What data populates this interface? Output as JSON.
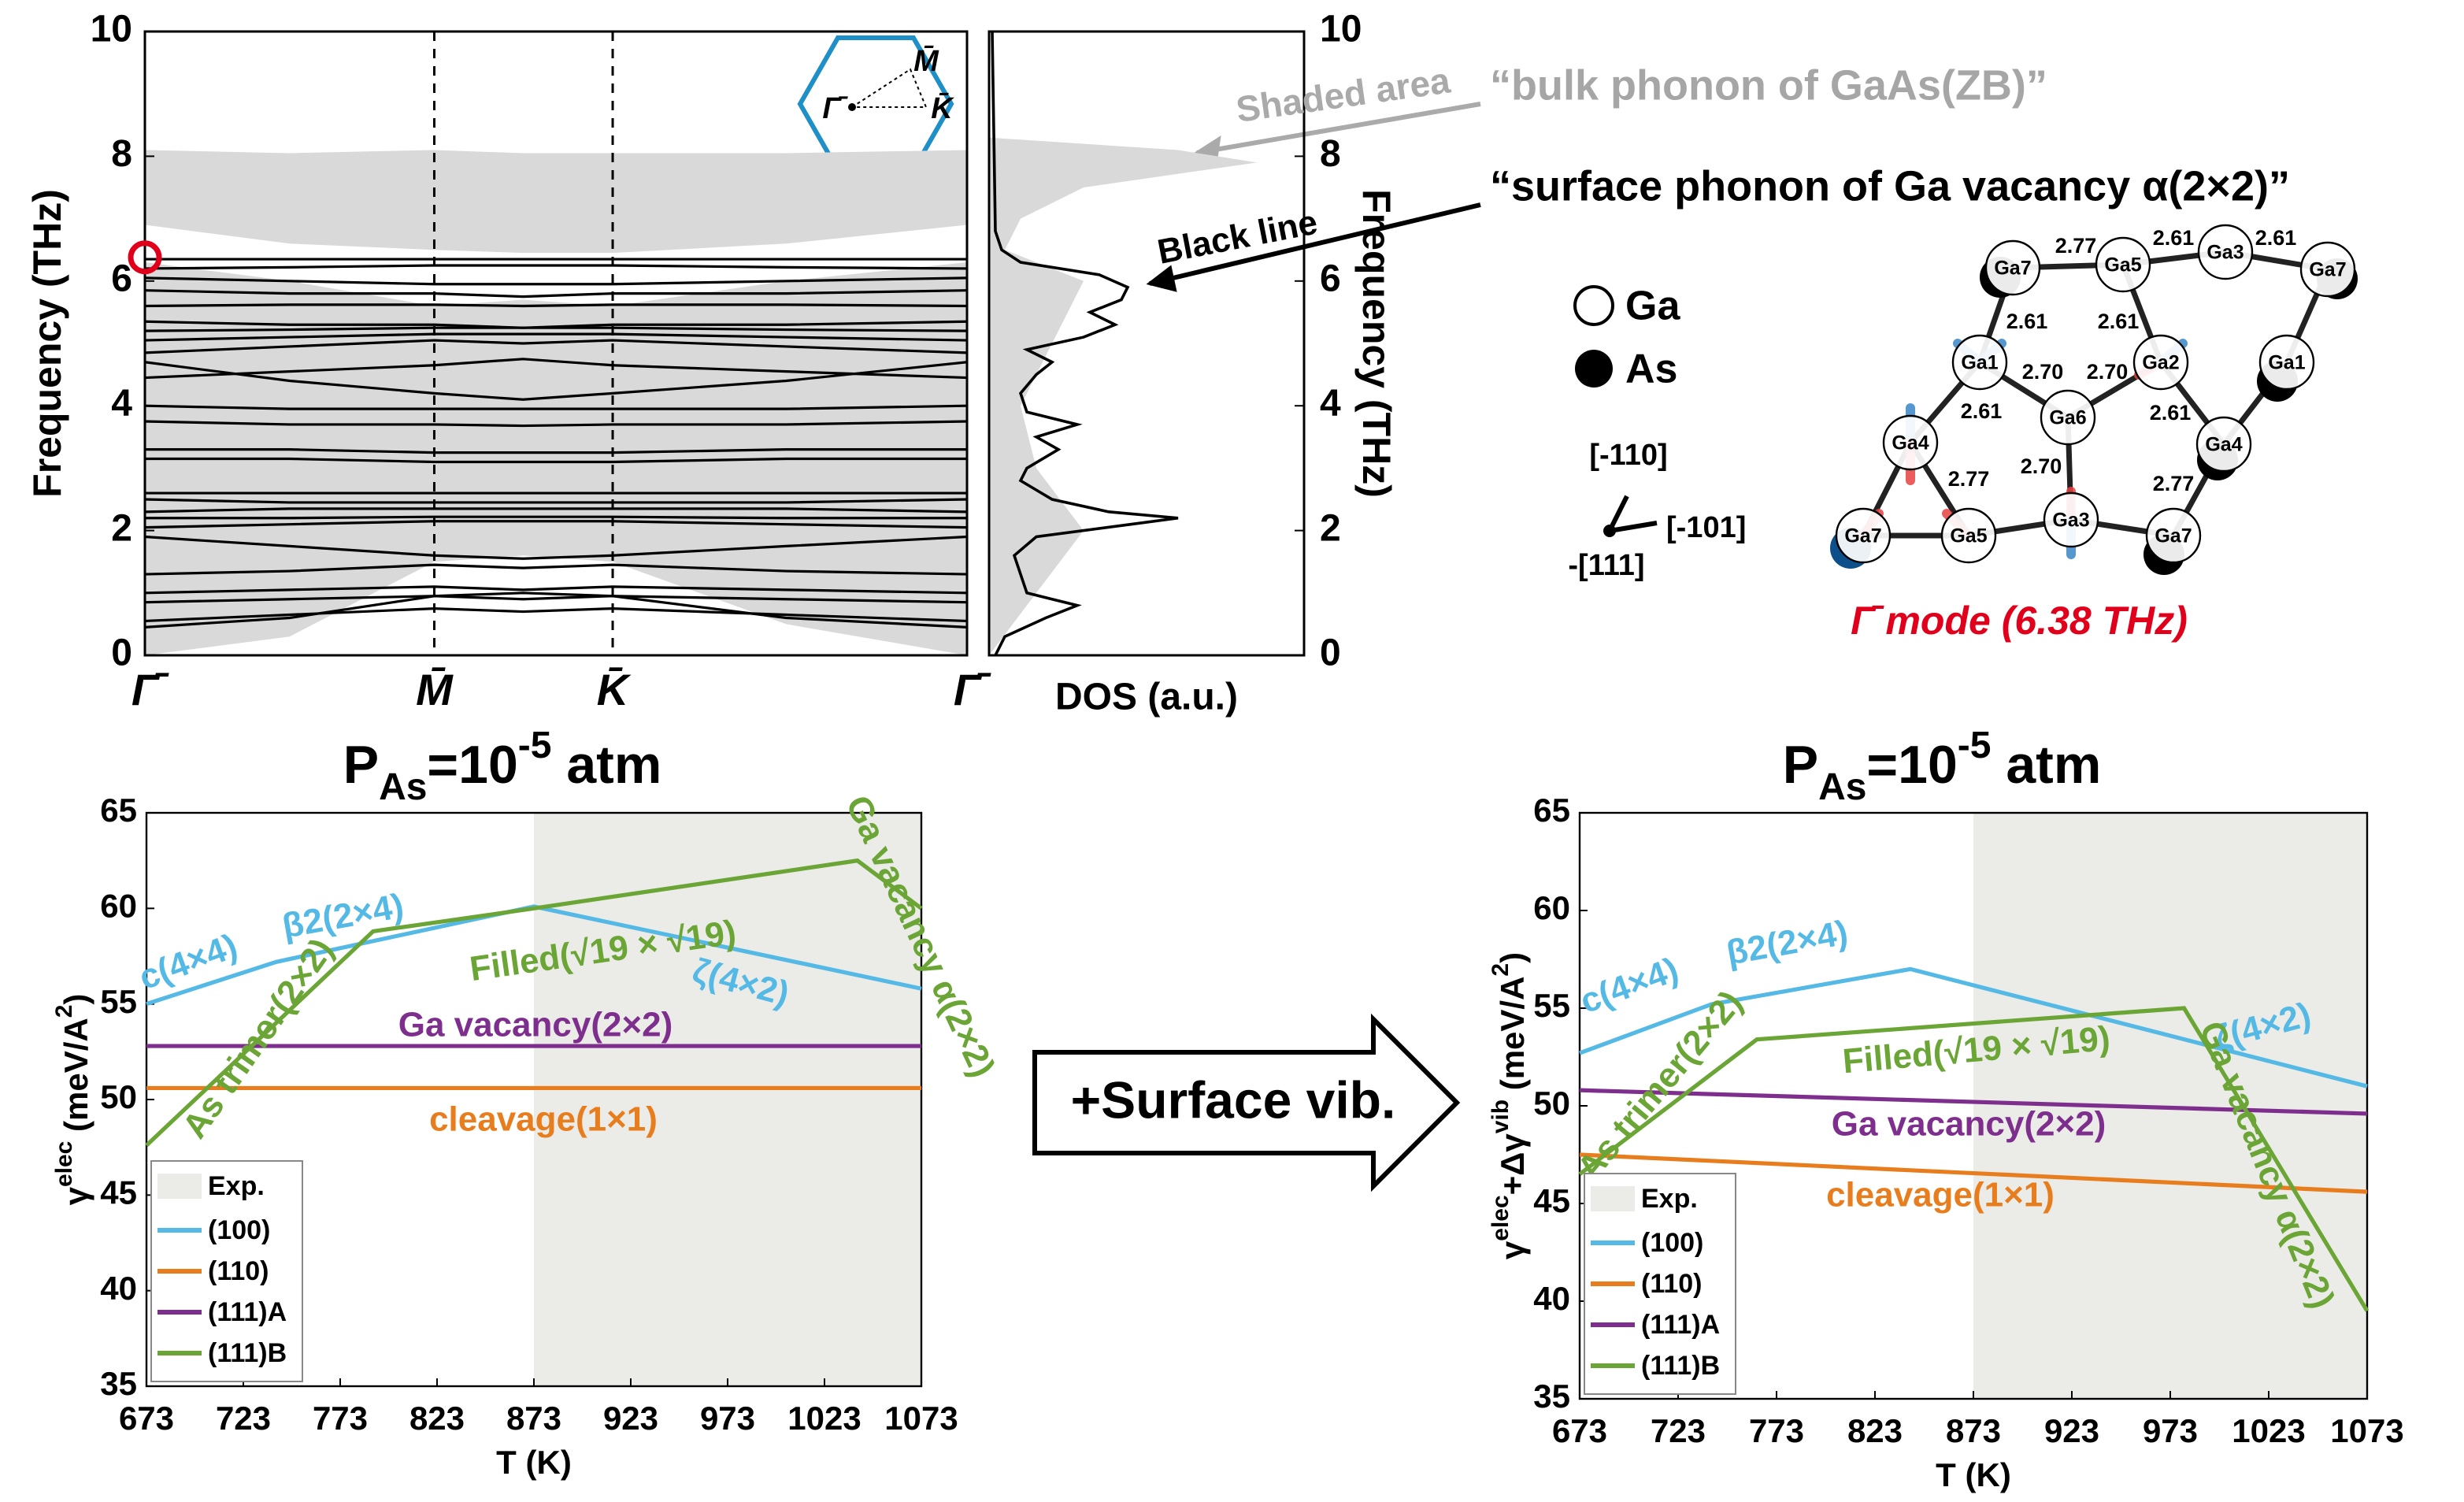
{
  "chart_data": [
    {
      "type": "band",
      "ylabel": "Frequency (THz)",
      "xlim": [
        0,
        1
      ],
      "ylim": [
        0,
        10
      ],
      "yticks": [
        0,
        2,
        4,
        6,
        8,
        10
      ],
      "xticks": [
        {
          "value": 0,
          "label": "Γ̄"
        },
        {
          "value": 0.352,
          "label": "M̄"
        },
        {
          "value": 0.569,
          "label": "K̄"
        },
        {
          "value": 1,
          "label": "Γ̄"
        }
      ],
      "x": [
        0,
        0.176,
        0.352,
        0.46,
        0.569,
        0.78,
        1
      ],
      "fill_color": "#d9d9d9",
      "line_color": "#000000",
      "bulk": [
        {
          "lower": [
            6.9,
            6.6,
            6.5,
            6.45,
            6.45,
            6.6,
            6.9
          ],
          "upper": [
            8.1,
            8.05,
            8.1,
            8.05,
            8.05,
            8.05,
            8.1
          ]
        },
        {
          "lower": [
            0,
            0.3,
            1.5,
            1.6,
            1.5,
            0.5,
            0
          ],
          "upper": [
            6.3,
            6.0,
            5.6,
            5.7,
            5.6,
            6.0,
            6.3
          ]
        }
      ],
      "bands": [
        [
          6.35,
          6.35,
          6.35,
          6.35,
          6.35,
          6.35,
          6.35
        ],
        [
          6.2,
          6.22,
          6.25,
          6.25,
          6.25,
          6.22,
          6.2
        ],
        [
          6.05,
          6.0,
          5.95,
          5.95,
          5.95,
          6.0,
          6.05
        ],
        [
          5.85,
          5.8,
          5.8,
          5.75,
          5.8,
          5.8,
          5.85
        ],
        [
          5.6,
          5.62,
          5.62,
          5.6,
          5.62,
          5.62,
          5.6
        ],
        [
          5.35,
          5.3,
          5.3,
          5.25,
          5.3,
          5.3,
          5.35
        ],
        [
          5.2,
          5.22,
          5.25,
          5.25,
          5.25,
          5.22,
          5.2
        ],
        [
          5.05,
          5.1,
          5.15,
          5.15,
          5.15,
          5.1,
          5.05
        ],
        [
          4.85,
          4.95,
          5.05,
          5.0,
          5.05,
          4.95,
          4.85
        ],
        [
          4.7,
          4.4,
          4.2,
          4.1,
          4.2,
          4.4,
          4.7
        ],
        [
          4.45,
          4.55,
          4.65,
          4.75,
          4.65,
          4.55,
          4.45
        ],
        [
          4.0,
          3.95,
          3.95,
          3.95,
          3.95,
          3.95,
          4.0
        ],
        [
          3.75,
          3.7,
          3.7,
          3.68,
          3.7,
          3.7,
          3.75
        ],
        [
          3.3,
          3.3,
          3.25,
          3.25,
          3.25,
          3.3,
          3.3
        ],
        [
          3.15,
          3.15,
          3.1,
          3.1,
          3.1,
          3.15,
          3.15
        ],
        [
          2.6,
          2.6,
          2.6,
          2.6,
          2.6,
          2.6,
          2.6
        ],
        [
          2.5,
          2.45,
          2.45,
          2.45,
          2.45,
          2.45,
          2.5
        ],
        [
          2.3,
          2.35,
          2.35,
          2.35,
          2.35,
          2.35,
          2.3
        ],
        [
          2.2,
          2.2,
          2.22,
          2.22,
          2.22,
          2.2,
          2.2
        ],
        [
          2.05,
          2.1,
          2.15,
          2.15,
          2.15,
          2.1,
          2.05
        ],
        [
          1.9,
          1.75,
          1.6,
          1.55,
          1.6,
          1.75,
          1.9
        ],
        [
          1.3,
          1.35,
          1.45,
          1.4,
          1.45,
          1.35,
          1.3
        ],
        [
          1.0,
          1.05,
          1.1,
          1.05,
          1.1,
          1.05,
          1.0
        ],
        [
          0.85,
          0.9,
          0.95,
          0.9,
          0.95,
          0.9,
          0.85
        ],
        [
          0.55,
          0.65,
          0.75,
          0.7,
          0.75,
          0.65,
          0.55
        ],
        [
          0.45,
          0.6,
          0.95,
          1.0,
          0.95,
          0.6,
          0.45
        ]
      ],
      "highlight": {
        "x": 0,
        "y": 6.38,
        "color": "#e0001b"
      }
    },
    {
      "type": "dos",
      "xlabel": "DOS (a.u.)",
      "ylabel": "Frequency (THz)",
      "xlim": [
        0,
        1
      ],
      "ylim": [
        0,
        10
      ],
      "yticks": [
        0,
        2,
        4,
        6,
        8,
        10
      ],
      "curves": [
        {
          "color": "#d9d9d9",
          "fill": true,
          "y": [
            0,
            1,
            2,
            3,
            4,
            5,
            5.5,
            6,
            6.5,
            7,
            7.5,
            7.9,
            8.1,
            8.3
          ],
          "values": [
            0,
            0.15,
            0.3,
            0.15,
            0.1,
            0.2,
            0.25,
            0.3,
            0.05,
            0.1,
            0.3,
            0.85,
            0.6,
            0
          ]
        },
        {
          "color": "#000000",
          "fill": false,
          "y": [
            0,
            0.3,
            0.6,
            0.8,
            0.9,
            1.0,
            1.3,
            1.6,
            1.9,
            2.1,
            2.2,
            2.3,
            2.5,
            2.8,
            3.0,
            3.3,
            3.5,
            3.7,
            3.9,
            4.2,
            4.5,
            4.7,
            4.9,
            5.1,
            5.3,
            5.5,
            5.7,
            5.9,
            6.1,
            6.3,
            6.5,
            6.8,
            10
          ],
          "values": [
            0.02,
            0.05,
            0.18,
            0.28,
            0.2,
            0.12,
            0.1,
            0.08,
            0.15,
            0.45,
            0.6,
            0.38,
            0.2,
            0.1,
            0.12,
            0.22,
            0.15,
            0.28,
            0.12,
            0.1,
            0.15,
            0.2,
            0.12,
            0.3,
            0.4,
            0.32,
            0.42,
            0.44,
            0.35,
            0.1,
            0.04,
            0.02,
            0.01
          ]
        }
      ]
    },
    {
      "type": "line",
      "title": [
        "P",
        "As",
        "=10",
        "-5",
        " atm"
      ],
      "ylabel": [
        "γ",
        "elec",
        " (meV/A",
        "2",
        ")"
      ],
      "xlabel": "T (K)",
      "xlim": [
        673,
        1073
      ],
      "xticks": [
        673,
        723,
        773,
        823,
        873,
        923,
        973,
        1023,
        1073
      ],
      "ylim": [
        35,
        65
      ],
      "yticks": [
        35,
        40,
        45,
        50,
        55,
        60,
        65
      ],
      "shaded": {
        "name": "Exp.",
        "xlim": [
          873,
          1073
        ],
        "color": "#ebebe7"
      },
      "legend": "lower left",
      "series": [
        {
          "name": "(100)",
          "color": "#55b9e6",
          "x": [
            673,
            740,
            873,
            1073
          ],
          "values": [
            55.0,
            57.2,
            60.1,
            55.8
          ]
        },
        {
          "name": "(110)",
          "color": "#e87d1e",
          "x": [
            673,
            1073
          ],
          "values": [
            50.6,
            50.6
          ]
        },
        {
          "name": "(111)A",
          "color": "#7e2f8e",
          "x": [
            673,
            1073
          ],
          "values": [
            52.8,
            52.8
          ]
        },
        {
          "name": "(111)B",
          "color": "#6aa535",
          "x": [
            673,
            790,
            873,
            1040,
            1073
          ],
          "values": [
            47.6,
            58.8,
            60.0,
            62.5,
            60.0
          ]
        }
      ],
      "annotations": [
        {
          "text": "c(4×4)",
          "color": "#55b9e6"
        },
        {
          "text": "β2(2×4)",
          "color": "#55b9e6"
        },
        {
          "text": "Filled(√19 × √19)",
          "color": "#6aa535"
        },
        {
          "text": "ζ(4×2)",
          "color": "#55b9e6"
        },
        {
          "text": "Ga vacancy(2×2)",
          "color": "#7e2f8e"
        },
        {
          "text": "cleavage(1×1)",
          "color": "#e87d1e"
        },
        {
          "text": "As trimer(2×2)",
          "color": "#6aa535"
        },
        {
          "text": "Ga vacancy α(2×2)",
          "color": "#6aa535"
        }
      ]
    },
    {
      "type": "line",
      "title": [
        "P",
        "As",
        "=10",
        "-5",
        " atm"
      ],
      "ylabel": [
        "γ",
        "elec",
        "+Δγ",
        "vib",
        " (meV/A",
        "2",
        ")"
      ],
      "xlabel": "T (K)",
      "xlim": [
        673,
        1073
      ],
      "xticks": [
        673,
        723,
        773,
        823,
        873,
        923,
        973,
        1023,
        1073
      ],
      "ylim": [
        35,
        65
      ],
      "yticks": [
        35,
        40,
        45,
        50,
        55,
        60,
        65
      ],
      "shaded": {
        "name": "Exp.",
        "xlim": [
          873,
          1073
        ],
        "color": "#ebebe7"
      },
      "legend": "lower left",
      "series": [
        {
          "name": "(100)",
          "color": "#55b9e6",
          "x": [
            673,
            740,
            841,
            1073
          ],
          "values": [
            52.7,
            55.2,
            57.0,
            51.0
          ]
        },
        {
          "name": "(110)",
          "color": "#e87d1e",
          "x": [
            673,
            1073
          ],
          "values": [
            47.5,
            45.6
          ]
        },
        {
          "name": "(111)A",
          "color": "#7e2f8e",
          "x": [
            673,
            1073
          ],
          "values": [
            50.8,
            49.6
          ]
        },
        {
          "name": "(111)B",
          "color": "#6aa535",
          "x": [
            673,
            763,
            980,
            1073
          ],
          "values": [
            46.5,
            53.4,
            55.0,
            39.5
          ]
        }
      ],
      "annotations": [
        {
          "text": "c(4×4)",
          "color": "#55b9e6"
        },
        {
          "text": "β2(2×4)",
          "color": "#55b9e6"
        },
        {
          "text": "Filled(√19 × √19)",
          "color": "#6aa535"
        },
        {
          "text": "ζ(4×2)",
          "color": "#55b9e6"
        },
        {
          "text": "Ga vacancy(2×2)",
          "color": "#7e2f8e"
        },
        {
          "text": "cleavage(1×1)",
          "color": "#e87d1e"
        },
        {
          "text": "As trimer(2×2)",
          "color": "#6aa535"
        },
        {
          "text": "Ga vacancy α(2×2)",
          "color": "#6aa535"
        }
      ]
    }
  ],
  "annotations": {
    "shaded_area": "Shaded area",
    "bulk": "“bulk phonon of GaAs(ZB)”",
    "surface": "“surface phonon of Ga vacancy α(2×2)”",
    "black_line": "Black line"
  },
  "arrow_label": "+Surface vib.",
  "structure": {
    "legend_labels": [
      "Ga",
      "As"
    ],
    "axes": [
      "[-110]",
      "[-101]",
      "-[111]"
    ],
    "atoms": [
      "Ga7",
      "Ga5",
      "Ga3",
      "Ga7",
      "Ga1",
      "Ga1",
      "Ga2",
      "Ga6",
      "Ga4",
      "Ga4",
      "Ga7",
      "Ga5",
      "Ga3",
      "Ga7"
    ],
    "bonds": [
      "2.77",
      "2.61",
      "2.61",
      "2.61",
      "2.61",
      "2.70",
      "2.70",
      "2.61",
      "2.61",
      "2.70",
      "2.77",
      "2.77"
    ],
    "caption": "Γ̄ mode (6.38 THz)"
  }
}
